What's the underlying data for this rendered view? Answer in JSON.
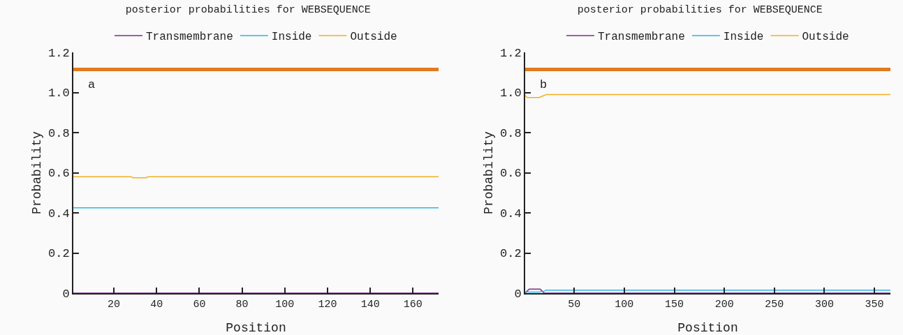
{
  "chart_data": [
    {
      "type": "line",
      "title": "posterior probabilities for WEBSEQUENCE",
      "xlabel": "Position",
      "ylabel": "Probability",
      "annotations": [
        "a"
      ],
      "x": [
        1,
        28,
        29,
        35,
        36,
        172
      ],
      "series": [
        {
          "name": "Transmembrane",
          "color": "#7b2d8e",
          "values": [
            0,
            0,
            0,
            0,
            0,
            0
          ]
        },
        {
          "name": "Inside",
          "color": "#29b6e8",
          "values": [
            0.425,
            0.425,
            0.425,
            0.425,
            0.425,
            0.425
          ]
        },
        {
          "name": "Outside",
          "color": "#f0b020",
          "values": [
            0.58,
            0.58,
            0.575,
            0.575,
            0.58,
            0.58
          ]
        },
        {
          "color": "#e07b20",
          "values": [
            1.115,
            1.115,
            1.115,
            1.115,
            1.115,
            1.115
          ]
        }
      ],
      "xlim": [
        1,
        172
      ],
      "xticks": [
        20,
        40,
        60,
        80,
        100,
        120,
        140,
        160
      ],
      "ylim": [
        0,
        1.2
      ],
      "yticks": [
        0,
        0.2,
        0.4,
        0.6,
        0.8,
        {
          "value": 1,
          "label": "1.0"
        },
        1.2
      ],
      "grid": false,
      "legend": "top",
      "marker": "none",
      "line_style": "solid"
    },
    {
      "type": "line",
      "title": "posterior probabilities for WEBSEQUENCE",
      "xlabel": "Position",
      "ylabel": "Probability",
      "annotations": [
        "b"
      ],
      "series": [
        {
          "name": "Transmembrane",
          "color": "#7b2d8e",
          "x": [
            1,
            3,
            5,
            8,
            12,
            16,
            18,
            20,
            366
          ],
          "values": [
            0,
            0.01,
            0.02,
            0.02,
            0.02,
            0.02,
            0.01,
            0,
            0
          ]
        },
        {
          "name": "Inside",
          "color": "#29b6e8",
          "x": [
            1,
            3,
            15,
            20,
            22,
            366
          ],
          "values": [
            0.005,
            0.005,
            0.005,
            0.01,
            0.015,
            0.015
          ]
        },
        {
          "name": "Outside",
          "color": "#f0b020",
          "x": [
            1,
            3,
            15,
            20,
            22,
            366
          ],
          "values": [
            0.985,
            0.975,
            0.975,
            0.985,
            0.99,
            0.99
          ]
        },
        {
          "color": "#e07b20",
          "x": [
            1,
            366
          ],
          "values": [
            1.115,
            1.115
          ]
        }
      ],
      "xlim": [
        1,
        366
      ],
      "xticks": [
        50,
        100,
        150,
        200,
        250,
        300,
        350
      ],
      "ylim": [
        0,
        1.2
      ],
      "yticks": [
        0,
        0.2,
        0.4,
        0.6,
        0.8,
        {
          "value": 1,
          "label": "1.0"
        },
        1.2
      ],
      "grid": false,
      "legend": "top",
      "marker": "none",
      "line_style": "solid"
    }
  ]
}
